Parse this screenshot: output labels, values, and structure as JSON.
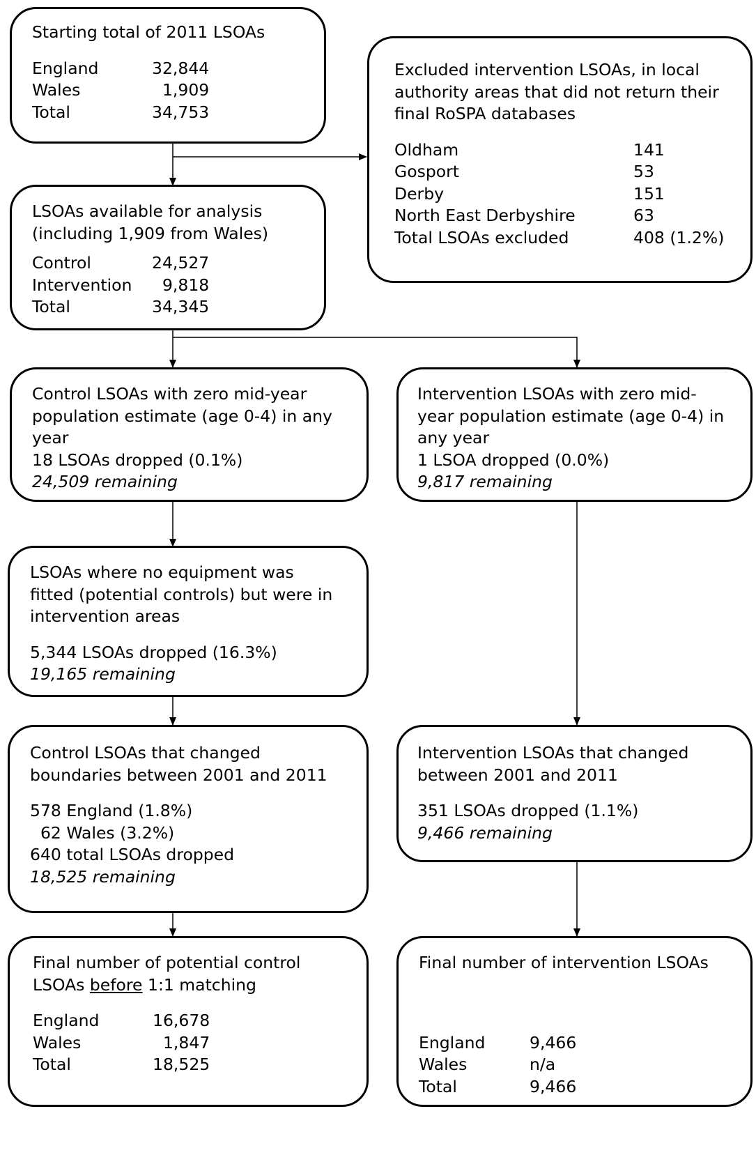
{
  "boxes": {
    "start": {
      "title": "Starting total of 2011 LSOAs",
      "rows": [
        {
          "label": "England",
          "value": "32,844"
        },
        {
          "label": "Wales",
          "value": "  1,909"
        },
        {
          "label": "Total",
          "value": "34,753"
        }
      ]
    },
    "excluded": {
      "title_lines": [
        "Excluded intervention LSOAs, in local",
        "authority areas that did not return their",
        "final RoSPA databases"
      ],
      "rows": [
        {
          "label": "Oldham",
          "value": "141"
        },
        {
          "label": "Gosport",
          "value": "53"
        },
        {
          "label": "Derby",
          "value": "151"
        },
        {
          "label": "North East Derbyshire",
          "value": "63"
        },
        {
          "label": "Total LSOAs excluded",
          "value": "408 (1.2%)"
        }
      ]
    },
    "available": {
      "title_lines": [
        "LSOAs available for analysis",
        "(including 1,909 from Wales)"
      ],
      "rows": [
        {
          "label": "Control",
          "value": "24,527"
        },
        {
          "label": "Intervention",
          "value": "  9,818"
        },
        {
          "label": "Total",
          "value": "34,345"
        }
      ]
    },
    "control_zero": {
      "lines": [
        "Control LSOAs with zero mid-year",
        "population estimate (age 0-4) in any",
        "year",
        "18 LSOAs dropped (0.1%)"
      ],
      "remaining": "24,509 remaining"
    },
    "intervention_zero": {
      "lines": [
        "Intervention LSOAs with zero mid-",
        "year population estimate (age 0-4) in",
        "any year",
        "1 LSOA dropped (0.0%)"
      ],
      "remaining": "9,817 remaining"
    },
    "no_equipment": {
      "lines": [
        "LSOAs where no equipment was",
        "fitted (potential controls) but were in",
        "intervention areas"
      ],
      "dropped": "5,344 LSOAs dropped (16.3%)",
      "remaining": "19,165 remaining"
    },
    "control_changed": {
      "lines": [
        "Control LSOAs that changed",
        "boundaries between 2001 and 2011"
      ],
      "details": [
        "578 England (1.8%)",
        "  62 Wales (3.2%)",
        "640 total LSOAs dropped"
      ],
      "remaining": "18,525 remaining"
    },
    "intervention_changed": {
      "lines": [
        "Intervention LSOAs that changed",
        "between 2001 and 2011"
      ],
      "dropped": "351 LSOAs dropped (1.1%)",
      "remaining": "9,466 remaining"
    },
    "final_control": {
      "line1": "Final number of potential control",
      "line2_pre": "LSOAs ",
      "line2_underlined": "before",
      "line2_post": " 1:1 matching",
      "rows": [
        {
          "label": "England",
          "value": "16,678"
        },
        {
          "label": "Wales",
          "value": "  1,847"
        },
        {
          "label": "Total",
          "value": "18,525"
        }
      ]
    },
    "final_intervention": {
      "title": "Final number of intervention LSOAs",
      "rows": [
        {
          "label": "England",
          "value": "9,466"
        },
        {
          "label": "Wales",
          "value": "n/a"
        },
        {
          "label": "Total",
          "value": "9,466"
        }
      ]
    }
  }
}
